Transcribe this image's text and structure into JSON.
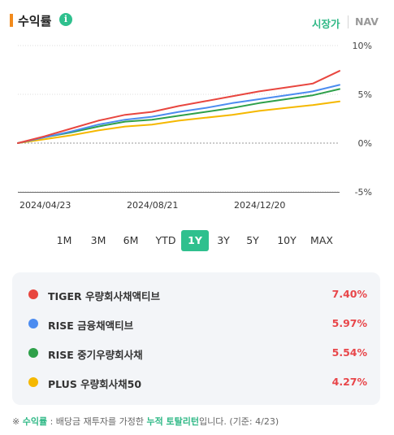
{
  "header": {
    "title": "수익률",
    "info_icon_text": "i",
    "toggle_price": "시장가",
    "toggle_nav": "NAV"
  },
  "colors": {
    "accent": "#2fc08e",
    "title_bar": "#f28a1c",
    "positive": "#e8464a"
  },
  "chart_data": {
    "type": "line",
    "yunit": "%",
    "ylim": [
      -5,
      10
    ],
    "yticks": [
      "10%",
      "5%",
      "0%",
      "-5%"
    ],
    "xticks": [
      "2024/04/23",
      "2024/08/21",
      "2024/12/20"
    ],
    "grid": "horizontal",
    "x": [
      "2024/04/23",
      "2024/05/23",
      "2024/06/22",
      "2024/07/22",
      "2024/08/21",
      "2024/09/20",
      "2024/10/20",
      "2024/11/19",
      "2024/12/20",
      "2025/01/19",
      "2025/02/18",
      "2025/03/20",
      "2025/04/19"
    ],
    "series": [
      {
        "name": "TIGER 우량회사채액티브",
        "color": "#e8463f",
        "values": [
          0.0,
          0.7,
          1.5,
          2.3,
          2.9,
          3.2,
          3.8,
          4.3,
          4.8,
          5.3,
          5.7,
          6.1,
          7.4
        ]
      },
      {
        "name": "RISE 금융채액티브",
        "color": "#4c8cf0",
        "values": [
          0.0,
          0.6,
          1.2,
          1.9,
          2.4,
          2.7,
          3.2,
          3.6,
          4.1,
          4.5,
          4.9,
          5.3,
          5.97
        ]
      },
      {
        "name": "RISE 중기우량회사채",
        "color": "#2ea04a",
        "values": [
          0.0,
          0.6,
          1.1,
          1.7,
          2.2,
          2.4,
          2.8,
          3.2,
          3.6,
          4.1,
          4.5,
          4.9,
          5.54
        ]
      },
      {
        "name": "PLUS 우량회사채50",
        "color": "#f5b800",
        "values": [
          0.0,
          0.4,
          0.8,
          1.3,
          1.7,
          1.9,
          2.3,
          2.6,
          2.9,
          3.3,
          3.6,
          3.9,
          4.27
        ]
      }
    ]
  },
  "periods": [
    "1M",
    "3M",
    "6M",
    "YTD",
    "1Y",
    "3Y",
    "5Y",
    "10Y",
    "MAX"
  ],
  "active_period": "1Y",
  "legend": [
    {
      "name": "TIGER 우량회사채액티브",
      "value": "7.40%",
      "color": "#e8463f"
    },
    {
      "name": "RISE 금융채액티브",
      "value": "5.97%",
      "color": "#4c8cf0"
    },
    {
      "name": "RISE 중기우량회사채",
      "value": "5.54%",
      "color": "#2ea04a"
    },
    {
      "name": "PLUS 우량회사채50",
      "value": "4.27%",
      "color": "#f5b800"
    }
  ],
  "footnote": {
    "prefix": "※ ",
    "term1": "수익률",
    "mid": " : 배당금 재투자를 가정한 ",
    "term2": "누적 토탈리턴",
    "suffix": "입니다. (기준: 4/23)"
  }
}
